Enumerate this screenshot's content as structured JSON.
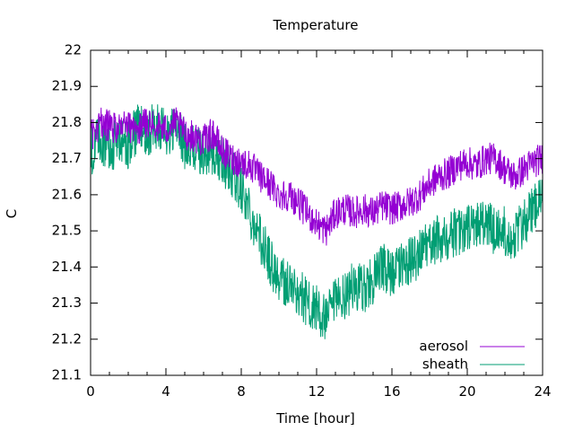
{
  "chart_data": {
    "type": "line",
    "title": "Temperature",
    "xlabel": "Time [hour]",
    "ylabel": "C",
    "xlim": [
      0,
      24
    ],
    "ylim": [
      21.1,
      22.0
    ],
    "x_ticks": [
      0,
      4,
      8,
      12,
      16,
      20,
      24
    ],
    "y_ticks": [
      21.1,
      21.2,
      21.3,
      21.4,
      21.5,
      21.6,
      21.7,
      21.8,
      21.9,
      22
    ],
    "x_tick_labels": [
      "0",
      "4",
      "8",
      "12",
      "16",
      "20",
      "24"
    ],
    "y_tick_labels": [
      "21.1",
      "21.2",
      "21.3",
      "21.4",
      "21.5",
      "21.6",
      "21.7",
      "21.8",
      "21.9",
      "22"
    ],
    "grid": false,
    "legend_position": "bottom-right",
    "x": [
      0,
      0.5,
      1,
      1.5,
      2,
      2.5,
      3,
      3.5,
      4,
      4.5,
      5,
      5.5,
      6,
      6.5,
      7,
      7.5,
      8,
      8.5,
      9,
      9.5,
      10,
      10.5,
      11,
      11.5,
      12,
      12.5,
      13,
      13.5,
      14,
      14.5,
      15,
      15.5,
      16,
      16.5,
      17,
      17.5,
      18,
      18.5,
      19,
      19.5,
      20,
      20.5,
      21,
      21.5,
      22,
      22.5,
      23,
      23.5,
      24
    ],
    "series": [
      {
        "name": "aerosol",
        "color": "#9400d3",
        "values": [
          21.76,
          21.8,
          21.79,
          21.78,
          21.79,
          21.78,
          21.8,
          21.79,
          21.78,
          21.8,
          21.77,
          21.76,
          21.75,
          21.77,
          21.72,
          21.7,
          21.69,
          21.68,
          21.65,
          21.63,
          21.6,
          21.6,
          21.58,
          21.55,
          21.52,
          21.5,
          21.55,
          21.56,
          21.55,
          21.56,
          21.55,
          21.57,
          21.56,
          21.57,
          21.58,
          21.6,
          21.63,
          21.65,
          21.66,
          21.68,
          21.69,
          21.68,
          21.7,
          21.7,
          21.67,
          21.65,
          21.67,
          21.69,
          21.7
        ]
      },
      {
        "name": "sheath",
        "color": "#009e73",
        "values": [
          21.72,
          21.75,
          21.73,
          21.75,
          21.74,
          21.78,
          21.77,
          21.79,
          21.77,
          21.78,
          21.74,
          21.73,
          21.72,
          21.71,
          21.69,
          21.66,
          21.62,
          21.55,
          21.48,
          21.42,
          21.37,
          21.35,
          21.33,
          21.3,
          21.28,
          21.25,
          21.3,
          21.32,
          21.35,
          21.34,
          21.36,
          21.4,
          21.38,
          21.4,
          21.42,
          21.44,
          21.46,
          21.48,
          21.49,
          21.5,
          21.5,
          21.52,
          21.52,
          21.5,
          21.5,
          21.48,
          21.52,
          21.56,
          21.58
        ]
      }
    ]
  }
}
